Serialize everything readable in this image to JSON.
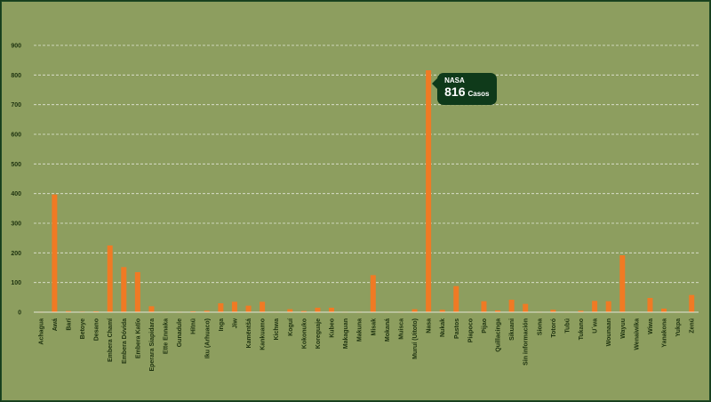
{
  "chart_data": {
    "type": "bar",
    "categories": [
      "Achagua",
      "Awá",
      "Barí",
      "Betoye",
      "Desano",
      "Embera Chamí",
      "Embera Dóvida",
      "Embera Katío",
      "Eperara Siapidara",
      "Ette Ennaka",
      "Gunadule",
      "Hitnü",
      "Iku (Arhuaco)",
      "Inga",
      "Jiw",
      "Kamëntšá",
      "Kankuamo",
      "Kichwa",
      "Koguí",
      "Kokonuko",
      "Koreguaje",
      "Kubeo",
      "Makaguan",
      "Makuna",
      "Misak",
      "Mokaná",
      "Muisca",
      "Muruí (Uitoto)",
      "Nasa",
      "Nukak",
      "Pastos",
      "Piapoco",
      "Pijao",
      "Quillacinga",
      "Sikuani",
      "Sin información",
      "Siona",
      "Totoró",
      "Tubú",
      "Tukano",
      "U´wa",
      "Wounaan",
      "Wayuu",
      "Wenaiwika",
      "Wiwa",
      "Yanakona",
      "Yukpa",
      "Zenú"
    ],
    "values": [
      1,
      397,
      4,
      2,
      3,
      225,
      152,
      135,
      20,
      1,
      1,
      3,
      5,
      30,
      35,
      22,
      35,
      1,
      10,
      4,
      15,
      15,
      1,
      1,
      125,
      1,
      1,
      10,
      816,
      8,
      88,
      1,
      37,
      6,
      42,
      28,
      1,
      8,
      1,
      5,
      38,
      37,
      192,
      1,
      48,
      12,
      1,
      58
    ],
    "ylim": [
      0,
      900
    ],
    "yticks": [
      0,
      100,
      200,
      300,
      400,
      500,
      600,
      700,
      800,
      900
    ],
    "grid": true,
    "bar_color": "#f07a24",
    "tooltip": {
      "title": "NASA",
      "value": "816",
      "unit": "Casos",
      "category": "Nasa"
    }
  }
}
